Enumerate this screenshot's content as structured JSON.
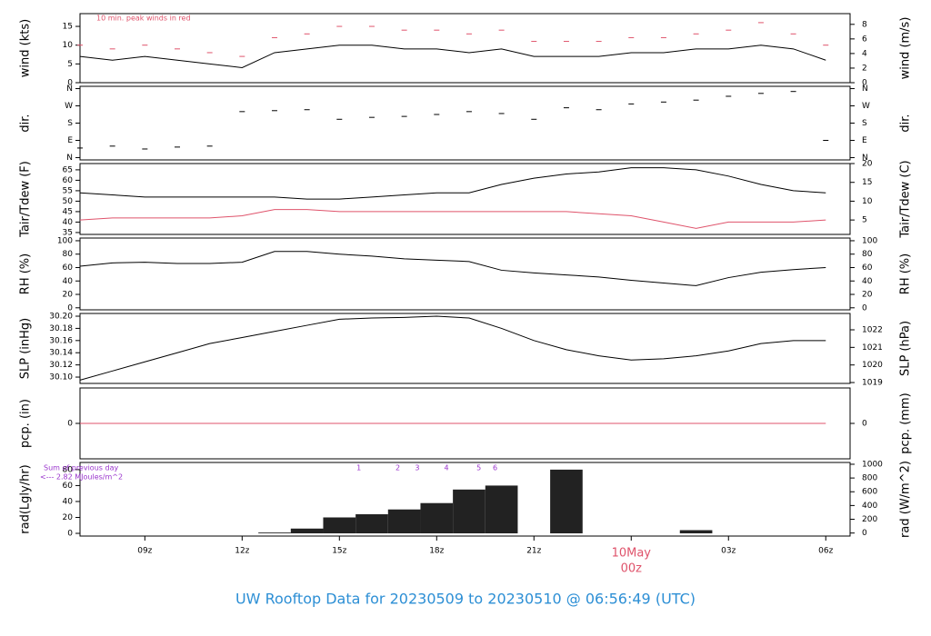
{
  "title": "UW Rooftop Data for 20230509  to  20230510 @ 06:56:49  (UTC)",
  "x_axis": {
    "xlim": [
      7,
      30.75
    ],
    "xticks": [
      {
        "value": 9,
        "label": "09z"
      },
      {
        "value": 12,
        "label": "12z"
      },
      {
        "value": 15,
        "label": "15z"
      },
      {
        "value": 18,
        "label": "18z"
      },
      {
        "value": 21,
        "label": "21z"
      },
      {
        "value": 24,
        "label": "00z"
      },
      {
        "value": 27,
        "label": "03z"
      },
      {
        "value": 30,
        "label": "06z"
      }
    ],
    "date_label": {
      "value": 24,
      "label": "10May"
    }
  },
  "chart_data": [
    {
      "type": "line",
      "ylabel": "wind (kts)",
      "y2label": "wind (m/s)",
      "annotation": "10 min. peak winds in red",
      "ylim": [
        0,
        18.4
      ],
      "yticks": [
        0,
        5,
        10,
        15
      ],
      "y2lim": [
        0,
        9.47
      ],
      "y2ticks": [
        0,
        2,
        4,
        6,
        8
      ],
      "x": [
        7,
        8,
        9,
        10,
        11,
        12,
        13,
        14,
        15,
        16,
        17,
        18,
        19,
        20,
        21,
        22,
        23,
        24,
        25,
        26,
        27,
        28,
        29,
        30
      ],
      "series": [
        {
          "name": "wind",
          "color": "#000000",
          "values": [
            7,
            6,
            7,
            6,
            5,
            4,
            8,
            9,
            10,
            10,
            9,
            9,
            8,
            9,
            7,
            7,
            7,
            8,
            8,
            9,
            9,
            10,
            9,
            6
          ]
        },
        {
          "name": "peak",
          "color": "#df536b",
          "style": "dash",
          "values": [
            10,
            9,
            10,
            9,
            8,
            7,
            12,
            13,
            15,
            15,
            14,
            14,
            13,
            14,
            11,
            11,
            11,
            12,
            12,
            13,
            14,
            16,
            13,
            10
          ]
        }
      ]
    },
    {
      "type": "scatter",
      "ylabel": "dir.",
      "y2label": "dir.",
      "ylim": [
        -12,
        372
      ],
      "yticks": [
        {
          "value": 0,
          "label": "N"
        },
        {
          "value": 90,
          "label": "E"
        },
        {
          "value": 180,
          "label": "S"
        },
        {
          "value": 270,
          "label": "W"
        },
        {
          "value": 360,
          "label": "N"
        }
      ],
      "y2lim": [
        -12,
        372
      ],
      "y2ticks": [
        {
          "value": 0,
          "label": "N"
        },
        {
          "value": 90,
          "label": "E"
        },
        {
          "value": 180,
          "label": "S"
        },
        {
          "value": 270,
          "label": "W"
        },
        {
          "value": 360,
          "label": "N"
        }
      ],
      "x": [
        7,
        8,
        9,
        10,
        11,
        12,
        13,
        14,
        15,
        16,
        17,
        18,
        19,
        20,
        21,
        22,
        23,
        24,
        25,
        26,
        27,
        28,
        29,
        30
      ],
      "series": [
        {
          "name": "dir",
          "color": "#000000",
          "values": [
            50,
            60,
            45,
            55,
            60,
            240,
            245,
            250,
            200,
            210,
            215,
            225,
            240,
            230,
            200,
            260,
            250,
            280,
            290,
            300,
            320,
            335,
            345,
            90
          ]
        }
      ]
    },
    {
      "type": "line",
      "ylabel": "Tair/Tdew (F)",
      "y2label": "Tair/Tdew (C)",
      "ylim": [
        34.1,
        68
      ],
      "yticks": [
        35,
        40,
        45,
        50,
        55,
        60,
        65
      ],
      "y2lim": [
        1.17,
        20
      ],
      "y2ticks": [
        5,
        10,
        15,
        20
      ],
      "x": [
        7,
        8,
        9,
        10,
        11,
        12,
        13,
        14,
        15,
        16,
        17,
        18,
        19,
        20,
        21,
        22,
        23,
        24,
        25,
        26,
        27,
        28,
        29,
        30
      ],
      "series": [
        {
          "name": "Tair",
          "color": "#000000",
          "values": [
            54,
            53,
            52,
            52,
            52,
            52,
            52,
            51,
            51,
            52,
            53,
            54,
            54,
            58,
            61,
            63,
            64,
            66,
            66,
            65,
            62,
            58,
            55,
            54
          ]
        },
        {
          "name": "Tdew",
          "color": "#df536b",
          "values": [
            41,
            42,
            42,
            42,
            42,
            43,
            46,
            46,
            45,
            45,
            45,
            45,
            45,
            45,
            45,
            45,
            44,
            43,
            40,
            37,
            40,
            40,
            40,
            41
          ]
        }
      ]
    },
    {
      "type": "line",
      "ylabel": "RH (%)",
      "y2label": "RH (%)",
      "ylim": [
        -3,
        104
      ],
      "yticks": [
        0,
        20,
        40,
        60,
        80,
        100
      ],
      "y2lim": [
        -3,
        104
      ],
      "y2ticks": [
        0,
        20,
        40,
        60,
        80,
        100
      ],
      "x": [
        7,
        8,
        9,
        10,
        11,
        12,
        13,
        14,
        15,
        16,
        17,
        18,
        19,
        20,
        21,
        22,
        23,
        24,
        25,
        26,
        27,
        28,
        29,
        30
      ],
      "series": [
        {
          "name": "RH",
          "color": "#000000",
          "values": [
            62,
            67,
            68,
            66,
            66,
            68,
            84,
            84,
            80,
            77,
            73,
            71,
            69,
            56,
            52,
            49,
            46,
            41,
            37,
            33,
            45,
            53,
            57,
            60
          ]
        }
      ]
    },
    {
      "type": "line",
      "ylabel": "SLP (inHg)",
      "y2label": "SLP (hPa)",
      "ylim": [
        30.0896,
        30.2045
      ],
      "yticks": [
        {
          "value": 30.1,
          "label": "30.10"
        },
        30.12,
        30.14,
        30.16,
        30.18,
        {
          "value": 30.2,
          "label": "30.20"
        }
      ],
      "y2lim": [
        1018.95,
        1022.93
      ],
      "y2ticks": [
        1019,
        1020,
        1021,
        1022
      ],
      "x": [
        7,
        8,
        9,
        10,
        11,
        12,
        13,
        14,
        15,
        16,
        17,
        18,
        19,
        20,
        21,
        22,
        23,
        24,
        25,
        26,
        27,
        28,
        29,
        30
      ],
      "series": [
        {
          "name": "SLP",
          "color": "#000000",
          "values": [
            30.095,
            30.11,
            30.125,
            30.14,
            30.155,
            30.165,
            30.175,
            30.185,
            30.195,
            30.197,
            30.198,
            30.2,
            30.197,
            30.18,
            30.16,
            30.145,
            30.135,
            30.128,
            30.13,
            30.135,
            30.143,
            30.155,
            30.16,
            30.16
          ]
        }
      ]
    },
    {
      "type": "line",
      "ylabel": "pcp. (in)",
      "y2label": "pcp. (mm)",
      "ylim": [
        -1,
        1
      ],
      "yticks": [
        0
      ],
      "y2lim": [
        -1,
        1
      ],
      "y2ticks": [
        0
      ],
      "x": [
        7,
        8,
        9,
        10,
        11,
        12,
        13,
        14,
        15,
        16,
        17,
        18,
        19,
        20,
        21,
        22,
        23,
        24,
        25,
        26,
        27,
        28,
        29,
        30
      ],
      "series": [
        {
          "name": "pcp",
          "color": "#df536b",
          "values": [
            0,
            0,
            0,
            0,
            0,
            0,
            0,
            0,
            0,
            0,
            0,
            0,
            0,
            0,
            0,
            0,
            0,
            0,
            0,
            0,
            0,
            0,
            0,
            0
          ]
        }
      ]
    },
    {
      "type": "bar",
      "ylabel": "rad(Lgly/hr)",
      "y2label": "rad (W/m^2)",
      "annotations": [
        "Sum of previous day",
        "<--- 2.82 MJoules/m^2"
      ],
      "markers": [
        {
          "label": "1",
          "x": 15.6
        },
        {
          "label": "2",
          "x": 16.8
        },
        {
          "label": "3",
          "x": 17.4
        },
        {
          "label": "4",
          "x": 18.3
        },
        {
          "label": "5",
          "x": 19.3
        },
        {
          "label": "6",
          "x": 19.8
        }
      ],
      "ylim": [
        -3.4,
        89
      ],
      "yticks": [
        0,
        20,
        40,
        60,
        80
      ],
      "y2lim": [
        -44,
        1026
      ],
      "y2ticks": [
        0,
        200,
        400,
        600,
        800,
        1000
      ],
      "x": [
        7,
        8,
        9,
        10,
        11,
        12,
        13,
        14,
        15,
        16,
        17,
        18,
        19,
        20,
        21,
        22,
        23,
        24,
        25,
        26,
        27,
        28,
        29,
        30
      ],
      "series": [
        {
          "name": "rad",
          "color": "#222222",
          "values": [
            0,
            0,
            0,
            0,
            0,
            0,
            1,
            6,
            20,
            24,
            30,
            38,
            55,
            60,
            0,
            80,
            0,
            0,
            0,
            4,
            0,
            0,
            0,
            0
          ]
        }
      ]
    }
  ]
}
